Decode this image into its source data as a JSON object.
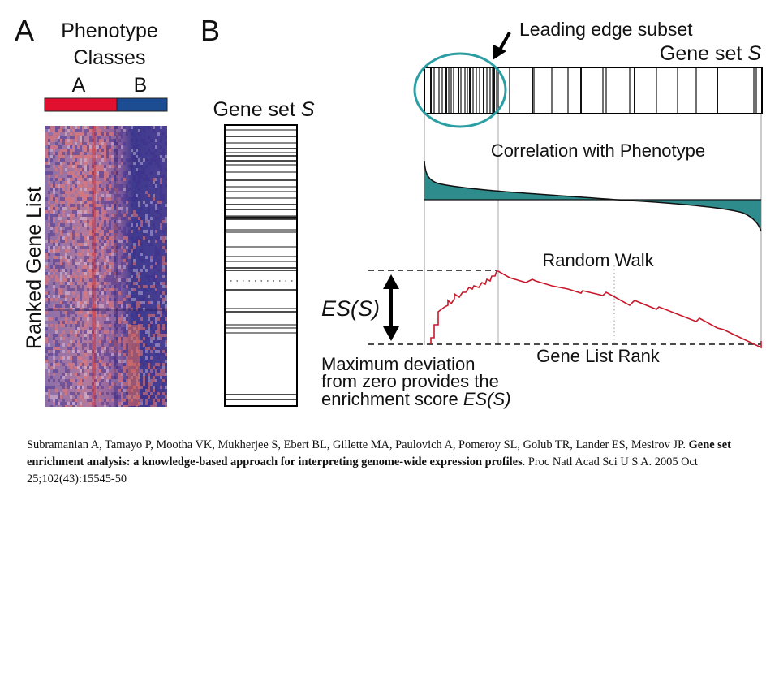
{
  "figure": {
    "panel_a": {
      "letter": "A",
      "header_line1": "Phenotype",
      "header_line2": "Classes",
      "class_a": "A",
      "class_b": "B",
      "y_label": "Ranked Gene List",
      "class_a_color": "#e0102e",
      "class_b_color": "#1c4d93"
    },
    "panel_b": {
      "letter": "B",
      "gene_set_prefix": "Gene set ",
      "gene_set_var": "S",
      "leading_edge": "Leading edge subset",
      "correlation_title": "Correlation with Phenotype",
      "random_walk_title": "Random Walk",
      "es_label": "ES(S)",
      "x_label": "Gene List Rank",
      "caption_line1": "Maximum deviation",
      "caption_line2": "from zero provides the",
      "caption_line3_prefix": "enrichment score ",
      "caption_line3_var": "ES(S)",
      "fill_color": "#2e8c8c",
      "walk_color": "#c8182b",
      "circle_color": "#2a9ea3"
    }
  },
  "citation": {
    "authors": "Subramanian A, Tamayo P, Mootha VK, Mukherjee S, Ebert BL, Gillette MA, Paulovich A, Pomeroy SL, Golub TR, Lander ES, Mesirov JP. ",
    "title": "Gene set enrichment analysis: a knowledge-based approach for interpreting genome-wide expression profiles",
    "journal": ". Proc Natl Acad Sci U S A. 2005 Oct 25;102(43):15545-50"
  }
}
